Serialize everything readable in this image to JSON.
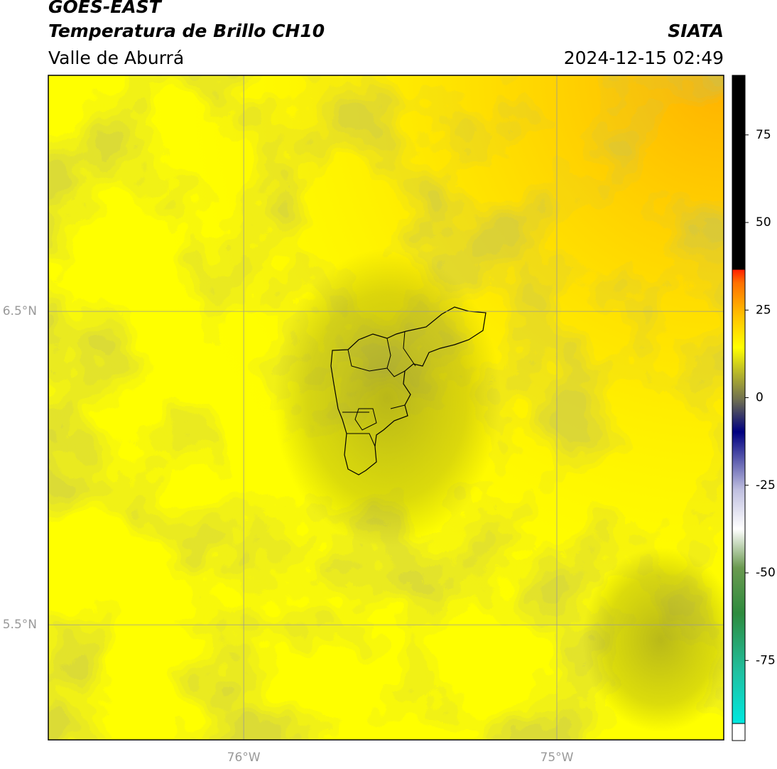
{
  "header": {
    "satellite": "GOES-EAST",
    "product": "Temperatura de Brillo CH10",
    "region": "Valle de Aburrá",
    "source": "SIATA",
    "timestamp": "2024-12-15 02:49"
  },
  "map": {
    "lon_lim": [
      -76.624,
      -74.467
    ],
    "lat_lim": [
      5.133,
      7.253
    ],
    "lat_ticks": [
      {
        "value": 6.5,
        "label": "6.5°N"
      },
      {
        "value": 5.5,
        "label": "5.5°N"
      }
    ],
    "lon_ticks": [
      {
        "value": -76,
        "label": "76°W"
      },
      {
        "value": -75,
        "label": "75°W"
      }
    ]
  },
  "colorbar": {
    "lim": [
      -93,
      92
    ],
    "ticks": [
      75,
      50,
      25,
      0,
      -25,
      -50,
      -75
    ]
  }
}
